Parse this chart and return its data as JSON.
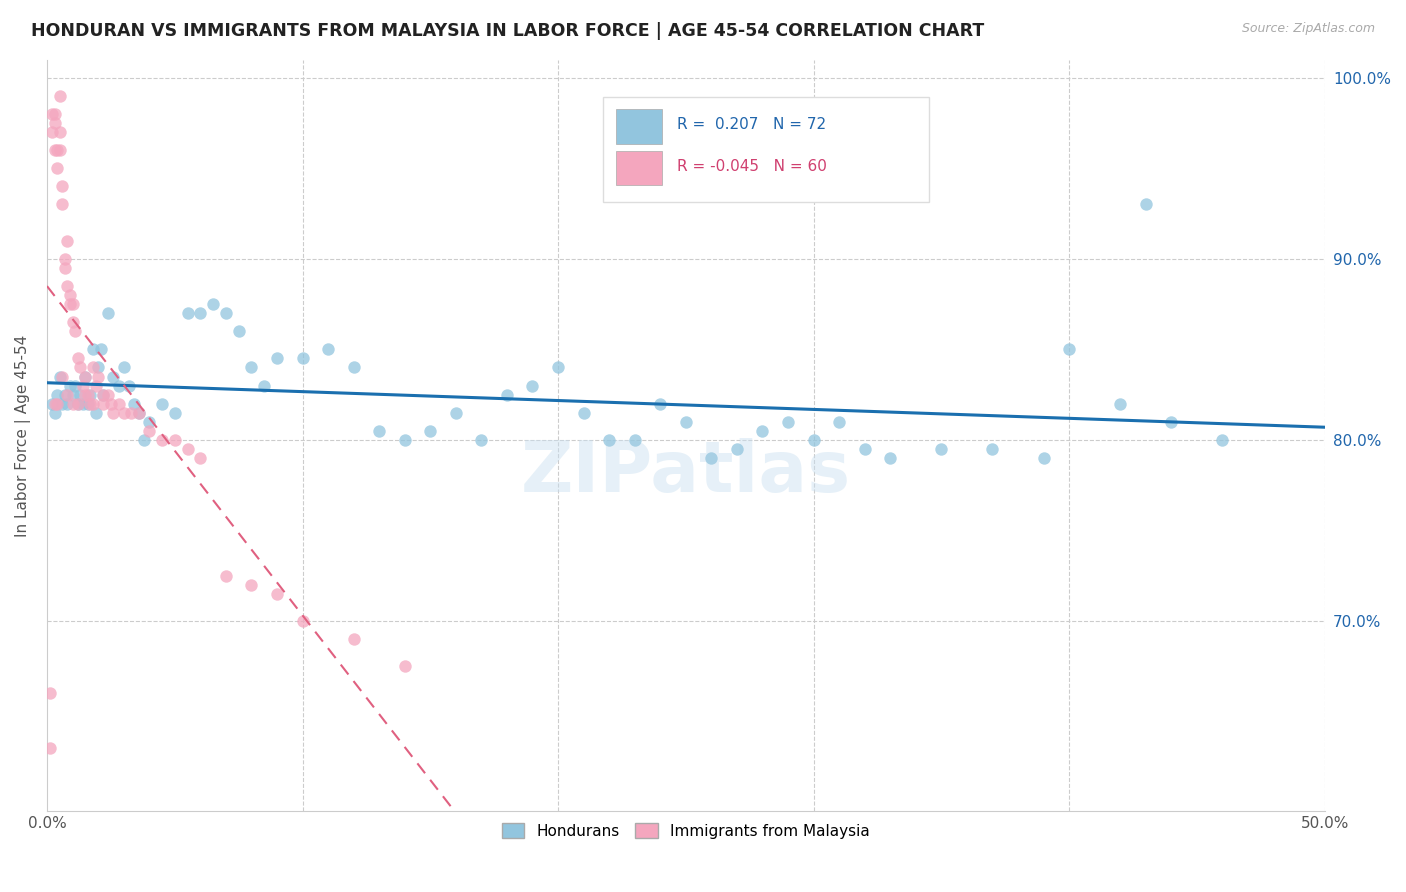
{
  "title": "HONDURAN VS IMMIGRANTS FROM MALAYSIA IN LABOR FORCE | AGE 45-54 CORRELATION CHART",
  "source": "Source: ZipAtlas.com",
  "ylabel": "In Labor Force | Age 45-54",
  "x_min": 0.0,
  "x_max": 0.5,
  "y_min": 0.595,
  "y_max": 1.01,
  "legend_r_blue": "0.207",
  "legend_n_blue": "72",
  "legend_r_pink": "-0.045",
  "legend_n_pink": "60",
  "blue_color": "#92c5de",
  "pink_color": "#f4a6be",
  "blue_line_color": "#1a6faf",
  "pink_line_color": "#e06080",
  "watermark": "ZIPatlas",
  "blue_scatter_x": [
    0.002,
    0.003,
    0.004,
    0.005,
    0.006,
    0.007,
    0.008,
    0.009,
    0.01,
    0.011,
    0.012,
    0.013,
    0.014,
    0.015,
    0.016,
    0.017,
    0.018,
    0.019,
    0.02,
    0.021,
    0.022,
    0.024,
    0.026,
    0.028,
    0.03,
    0.032,
    0.034,
    0.036,
    0.038,
    0.04,
    0.045,
    0.05,
    0.055,
    0.06,
    0.065,
    0.07,
    0.075,
    0.08,
    0.085,
    0.09,
    0.1,
    0.11,
    0.12,
    0.13,
    0.14,
    0.15,
    0.16,
    0.17,
    0.18,
    0.19,
    0.2,
    0.21,
    0.22,
    0.23,
    0.24,
    0.25,
    0.26,
    0.27,
    0.28,
    0.29,
    0.3,
    0.31,
    0.32,
    0.33,
    0.35,
    0.37,
    0.39,
    0.4,
    0.42,
    0.44,
    0.46,
    0.43
  ],
  "blue_scatter_y": [
    0.82,
    0.815,
    0.825,
    0.835,
    0.82,
    0.825,
    0.82,
    0.83,
    0.825,
    0.83,
    0.82,
    0.825,
    0.82,
    0.835,
    0.82,
    0.825,
    0.85,
    0.815,
    0.84,
    0.85,
    0.825,
    0.87,
    0.835,
    0.83,
    0.84,
    0.83,
    0.82,
    0.815,
    0.8,
    0.81,
    0.82,
    0.815,
    0.87,
    0.87,
    0.875,
    0.87,
    0.86,
    0.84,
    0.83,
    0.845,
    0.845,
    0.85,
    0.84,
    0.805,
    0.8,
    0.805,
    0.815,
    0.8,
    0.825,
    0.83,
    0.84,
    0.815,
    0.8,
    0.8,
    0.82,
    0.81,
    0.79,
    0.795,
    0.805,
    0.81,
    0.8,
    0.81,
    0.795,
    0.79,
    0.795,
    0.795,
    0.79,
    0.85,
    0.82,
    0.81,
    0.8,
    0.93
  ],
  "pink_scatter_x": [
    0.001,
    0.001,
    0.002,
    0.002,
    0.003,
    0.003,
    0.003,
    0.004,
    0.004,
    0.005,
    0.005,
    0.005,
    0.006,
    0.006,
    0.007,
    0.007,
    0.008,
    0.008,
    0.009,
    0.009,
    0.01,
    0.01,
    0.011,
    0.012,
    0.013,
    0.014,
    0.015,
    0.016,
    0.017,
    0.018,
    0.019,
    0.02,
    0.022,
    0.024,
    0.026,
    0.028,
    0.03,
    0.033,
    0.036,
    0.04,
    0.045,
    0.05,
    0.055,
    0.06,
    0.07,
    0.08,
    0.09,
    0.1,
    0.12,
    0.14,
    0.004,
    0.006,
    0.008,
    0.01,
    0.012,
    0.015,
    0.018,
    0.022,
    0.025,
    0.003
  ],
  "pink_scatter_y": [
    0.63,
    0.66,
    0.98,
    0.97,
    0.98,
    0.975,
    0.96,
    0.96,
    0.95,
    0.99,
    0.97,
    0.96,
    0.94,
    0.93,
    0.9,
    0.895,
    0.91,
    0.885,
    0.88,
    0.875,
    0.875,
    0.865,
    0.86,
    0.845,
    0.84,
    0.83,
    0.835,
    0.825,
    0.82,
    0.84,
    0.83,
    0.835,
    0.825,
    0.825,
    0.815,
    0.82,
    0.815,
    0.815,
    0.815,
    0.805,
    0.8,
    0.8,
    0.795,
    0.79,
    0.725,
    0.72,
    0.715,
    0.7,
    0.69,
    0.675,
    0.82,
    0.835,
    0.825,
    0.82,
    0.82,
    0.825,
    0.82,
    0.82,
    0.82,
    0.82
  ]
}
